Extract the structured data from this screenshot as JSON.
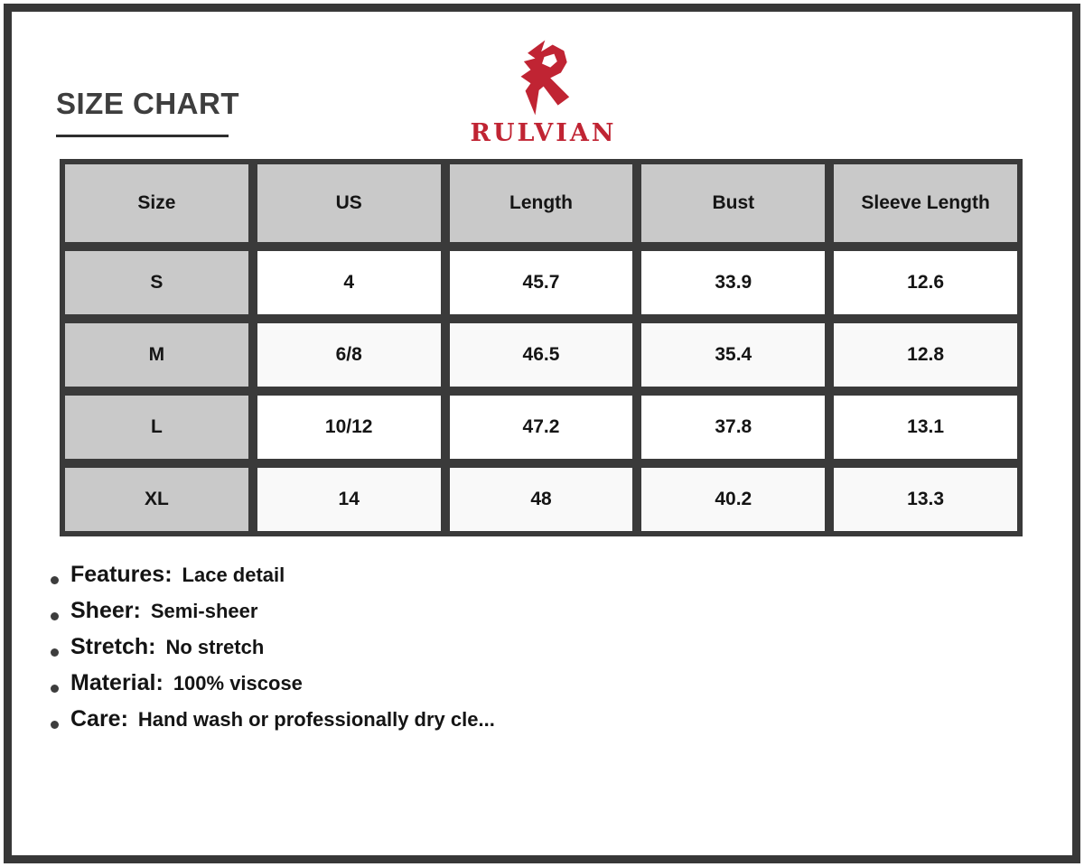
{
  "header": {
    "title": "SIZE CHART",
    "brand": "RULVIAN",
    "logo_icon": "rulvian-r-monogram"
  },
  "table": {
    "columns": [
      "Size",
      "US",
      "Length",
      "Bust",
      "Sleeve Length"
    ],
    "rows": [
      {
        "size": "S",
        "values": [
          "4",
          "45.7",
          "33.9",
          "12.6"
        ]
      },
      {
        "size": "M",
        "values": [
          "6/8",
          "46.5",
          "35.4",
          "12.8"
        ]
      },
      {
        "size": "L",
        "values": [
          "10/12",
          "47.2",
          "37.8",
          "13.1"
        ]
      },
      {
        "size": "XL",
        "values": [
          "14",
          "48",
          "40.2",
          "13.3"
        ]
      }
    ]
  },
  "specs": [
    {
      "label": "Features:",
      "value": "Lace detail"
    },
    {
      "label": "Sheer:",
      "value": "Semi-sheer"
    },
    {
      "label": "Stretch:",
      "value": "No stretch"
    },
    {
      "label": "Material:",
      "value": "100% viscose"
    },
    {
      "label": "Care:",
      "value": "Hand wash or professionally dry cle..."
    }
  ],
  "colors": {
    "accent_red": "#c02433",
    "frame_dark": "#383838",
    "table_grid_dark": "#3a3a3a",
    "header_cell_gray": "#c9c9c9",
    "text_dark": "#1a1a1a"
  }
}
